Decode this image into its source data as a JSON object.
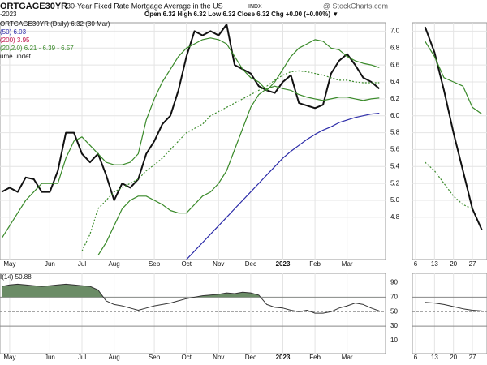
{
  "header": {
    "symbol": "ORTGAGE30YR",
    "name": "30-Year Fixed Rate Mortgage Average in the US",
    "exchange": "INDX",
    "source": "@ StockCharts.com",
    "date": "-2023",
    "quote": "Open 6.32  High 6.32  Low 6.32  Close 6.32  Chg +0.00 (+0.00%) ▼",
    "extra_legend": [
      {
        "text": "(200) 3.95",
        "color": "#c0144a"
      },
      {
        "text": "ume undef",
        "color": "#111111"
      }
    ]
  },
  "chart_data": [
    {
      "type": "line",
      "categories": [
        null,
        "May",
        null,
        null,
        null,
        null,
        "Jun",
        null,
        null,
        null,
        "Jul",
        null,
        null,
        null,
        "Aug",
        null,
        null,
        null,
        null,
        "Sep",
        null,
        null,
        null,
        "Oct",
        null,
        null,
        null,
        "Nov",
        null,
        null,
        null,
        "Dec",
        null,
        null,
        null,
        "2023",
        null,
        null,
        null,
        "Feb",
        null,
        null,
        null,
        "Mar",
        null,
        null,
        null,
        null
      ],
      "ylim": [
        4.3,
        7.1
      ],
      "yticks": [
        4.8,
        {
          "value": 5.0,
          "label": "5.0"
        },
        5.2,
        5.4,
        5.6,
        5.8,
        {
          "value": 6.0,
          "label": "6.0"
        },
        6.2,
        6.4,
        6.6,
        6.8,
        {
          "value": 7.0,
          "label": "7.0"
        }
      ],
      "grid": true,
      "series": [
        {
          "name": "ORTGAGE30YR (Daily) 6.32 (30 Mar)",
          "color": "#111111",
          "width": 2,
          "values": [
            5.1,
            5.15,
            5.1,
            5.27,
            5.25,
            5.1,
            5.1,
            5.35,
            5.8,
            5.8,
            5.55,
            5.45,
            5.55,
            5.3,
            5.0,
            5.2,
            5.15,
            5.25,
            5.55,
            5.7,
            5.9,
            6.0,
            6.3,
            6.7,
            7.0,
            6.95,
            7.0,
            6.95,
            7.08,
            6.6,
            6.55,
            6.5,
            6.35,
            6.3,
            6.27,
            6.4,
            6.48,
            6.15,
            6.12,
            6.09,
            6.13,
            6.5,
            6.65,
            6.73,
            6.6,
            6.45,
            6.4,
            6.32
          ]
        },
        {
          "name": "(50) 6.03",
          "color": "#2b2ba8",
          "width": 1.2,
          "values": [
            null,
            null,
            null,
            null,
            null,
            null,
            null,
            null,
            null,
            null,
            null,
            null,
            null,
            null,
            null,
            null,
            null,
            null,
            null,
            null,
            null,
            null,
            null,
            4.3,
            4.4,
            4.5,
            4.6,
            4.7,
            4.8,
            4.9,
            5.0,
            5.1,
            5.2,
            5.3,
            5.4,
            5.5,
            5.58,
            5.65,
            5.72,
            5.78,
            5.83,
            5.87,
            5.92,
            5.95,
            5.98,
            6.0,
            6.02,
            6.03
          ]
        },
        {
          "name": "(20,2.0) 6.21 - 6.39 - 6.57",
          "color": "#3a8a2a",
          "width": 1.2,
          "values": [
            4.55,
            4.7,
            4.85,
            5.0,
            5.1,
            5.2,
            5.2,
            5.2,
            5.5,
            5.7,
            5.75,
            5.65,
            5.55,
            5.45,
            5.42,
            5.42,
            5.45,
            5.55,
            5.95,
            6.2,
            6.4,
            6.55,
            6.7,
            6.8,
            6.85,
            6.9,
            6.92,
            6.9,
            6.85,
            6.7,
            6.55,
            6.45,
            6.4,
            6.3,
            6.4,
            6.55,
            6.7,
            6.8,
            6.85,
            6.9,
            6.88,
            6.8,
            6.78,
            6.7,
            6.65,
            6.62,
            6.6,
            6.57
          ]
        },
        {
          "color": "#3a8a2a",
          "width": 1.2,
          "dashed": true,
          "values": [
            null,
            null,
            null,
            null,
            null,
            null,
            null,
            null,
            null,
            null,
            4.4,
            4.6,
            4.9,
            5.0,
            5.1,
            5.15,
            5.2,
            5.25,
            5.35,
            5.42,
            5.5,
            5.6,
            5.7,
            5.8,
            5.85,
            5.9,
            6.0,
            6.05,
            6.1,
            6.15,
            6.2,
            6.25,
            6.3,
            6.35,
            6.42,
            6.48,
            6.52,
            6.53,
            6.52,
            6.5,
            6.48,
            6.45,
            6.42,
            6.42,
            6.4,
            6.39,
            6.39,
            6.39
          ]
        },
        {
          "color": "#3a8a2a",
          "width": 1.2,
          "values": [
            null,
            null,
            null,
            null,
            null,
            null,
            null,
            null,
            null,
            null,
            null,
            null,
            4.35,
            4.5,
            4.7,
            4.9,
            5.0,
            5.05,
            5.05,
            5.0,
            4.95,
            4.88,
            4.85,
            4.85,
            4.95,
            5.05,
            5.1,
            5.2,
            5.35,
            5.6,
            5.85,
            6.1,
            6.25,
            6.32,
            6.35,
            6.32,
            6.3,
            6.25,
            6.22,
            6.2,
            6.18,
            6.2,
            6.22,
            6.22,
            6.2,
            6.18,
            6.2,
            6.21
          ]
        }
      ]
    },
    {
      "type": "line",
      "categories": [
        null,
        "May",
        null,
        null,
        null,
        null,
        "Jun",
        null,
        null,
        null,
        "Jul",
        null,
        null,
        null,
        "Aug",
        null,
        null,
        null,
        null,
        "Sep",
        null,
        null,
        null,
        "Oct",
        null,
        null,
        null,
        "Nov",
        null,
        null,
        null,
        "Dec",
        null,
        null,
        null,
        "2023",
        null,
        null,
        null,
        "Feb",
        null,
        null,
        null,
        "Mar",
        null,
        null,
        null,
        null
      ],
      "ylim": [
        -8,
        103
      ],
      "yticks": [
        10,
        30,
        50,
        70,
        90
      ],
      "reference_lines": [
        70,
        50,
        30
      ],
      "fill_above": 70,
      "fill_color": "#6b8c66",
      "series": [
        {
          "name": "I(14) 50.88",
          "color": "#333333",
          "width": 1,
          "values": [
            85,
            87,
            88,
            87,
            86,
            85,
            86,
            87,
            88,
            87,
            86,
            85,
            80,
            65,
            60,
            58,
            55,
            52,
            55,
            58,
            60,
            62,
            65,
            68,
            70,
            72,
            73,
            74,
            76,
            75,
            77,
            76,
            73,
            60,
            56,
            55,
            52,
            50,
            52,
            48,
            48,
            50,
            55,
            58,
            62,
            60,
            55,
            51
          ]
        }
      ]
    },
    {
      "type": "line",
      "categories": [
        "6",
        null,
        "13",
        null,
        "20",
        null,
        "27",
        null
      ],
      "ylim": [
        4.3,
        7.1
      ],
      "yticks": [
        4.8,
        {
          "value": 5.0,
          "label": "5.0"
        },
        5.2,
        5.4,
        5.6,
        5.8,
        {
          "value": 6.0,
          "label": "6.0"
        },
        6.2,
        6.4,
        6.6,
        6.8,
        {
          "value": 7.0,
          "label": "7.0"
        }
      ],
      "grid": true,
      "series": [
        {
          "color": "#111111",
          "width": 2,
          "values": [
            null,
            7.05,
            6.75,
            6.3,
            5.8,
            5.35,
            4.9,
            4.65
          ]
        },
        {
          "color": "#3a8a2a",
          "width": 1.2,
          "values": [
            null,
            6.88,
            6.7,
            6.45,
            6.4,
            6.35,
            6.1,
            6.02
          ]
        },
        {
          "color": "#3a8a2a",
          "width": 1.2,
          "dashed": true,
          "values": [
            null,
            5.45,
            5.35,
            5.2,
            5.05,
            4.95,
            4.9,
            null
          ]
        }
      ]
    },
    {
      "type": "line",
      "categories": [
        "6",
        null,
        "13",
        null,
        "20",
        null,
        "27",
        null
      ],
      "ylim": [
        -8,
        103
      ],
      "yticks": [
        10,
        30,
        50,
        70,
        90
      ],
      "reference_lines": [
        70,
        50,
        30
      ],
      "series": [
        {
          "color": "#333333",
          "width": 1,
          "values": [
            null,
            63,
            62,
            60,
            57,
            54,
            52,
            51
          ]
        }
      ]
    }
  ]
}
